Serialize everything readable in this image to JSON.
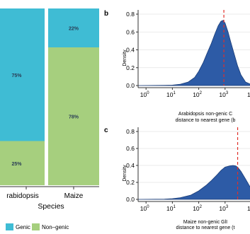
{
  "chart_data": [
    {
      "type": "bar",
      "stacked": true,
      "percent": true,
      "xlabel": "Species",
      "categories": [
        "rabidopsis",
        "Maize"
      ],
      "series": [
        {
          "name": "Genic",
          "color": "#3fbcd4",
          "values": [
            75,
            22
          ],
          "labels": [
            "75%",
            "22%"
          ]
        },
        {
          "name": "Non–genic",
          "color": "#a6cf7e",
          "values": [
            25,
            78
          ],
          "labels": [
            "25%",
            "78%"
          ]
        }
      ],
      "legend": "bottom"
    },
    {
      "type": "area",
      "panel_label": "b",
      "ylabel": "Density",
      "xlabel_line1": "Arabidopsis non-genic C",
      "xlabel_line2": "distance to nearest gene (b",
      "xscale": "log",
      "xlim": [
        0.5,
        10000
      ],
      "ylim": [
        0,
        0.8
      ],
      "yticks": [
        0.0,
        0.2,
        0.4,
        0.6,
        0.8
      ],
      "ytick_labels": [
        "0.0",
        "0.2",
        "0.4",
        "0.6",
        "0.8"
      ],
      "xticks": [
        1,
        10,
        100,
        1000
      ],
      "xtick_labels": [
        "0",
        "1",
        "2",
        "3"
      ],
      "vline": 900,
      "color": "#2d5ba6",
      "x": [
        0.5,
        5,
        10,
        20,
        40,
        70,
        100,
        150,
        200,
        300,
        400,
        550,
        700,
        850,
        1000,
        1300,
        1600,
        2000,
        2500,
        3000,
        4000,
        6000,
        10000
      ],
      "y": [
        0,
        0.002,
        0.005,
        0.015,
        0.04,
        0.09,
        0.16,
        0.26,
        0.35,
        0.47,
        0.57,
        0.67,
        0.72,
        0.73,
        0.7,
        0.6,
        0.5,
        0.4,
        0.3,
        0.22,
        0.12,
        0.04,
        0.01
      ]
    },
    {
      "type": "area",
      "panel_label": "c",
      "ylabel": "Density",
      "xlabel_line1": "Maize non-genic GlI",
      "xlabel_line2": "distance to nearest gene (t",
      "xscale": "log",
      "xlim": [
        0.5,
        10000
      ],
      "ylim": [
        0,
        0.8
      ],
      "yticks": [
        0.0,
        0.2,
        0.4,
        0.6,
        0.8
      ],
      "ytick_labels": [
        "0.0",
        "0.2",
        "0.4",
        "0.6",
        "0.8"
      ],
      "xticks": [
        1,
        10,
        100,
        1000
      ],
      "xtick_labels": [
        "0",
        "1",
        "2",
        "3"
      ],
      "vline": 3000,
      "color": "#2d5ba6",
      "x": [
        0.5,
        5,
        10,
        20,
        50,
        100,
        200,
        300,
        500,
        700,
        1000,
        1500,
        2000,
        2500,
        3000,
        4000,
        6000,
        10000
      ],
      "y": [
        0,
        0.003,
        0.008,
        0.02,
        0.05,
        0.1,
        0.17,
        0.22,
        0.29,
        0.34,
        0.38,
        0.395,
        0.4,
        0.395,
        0.38,
        0.33,
        0.24,
        0.12
      ]
    }
  ],
  "tick_base": "10"
}
